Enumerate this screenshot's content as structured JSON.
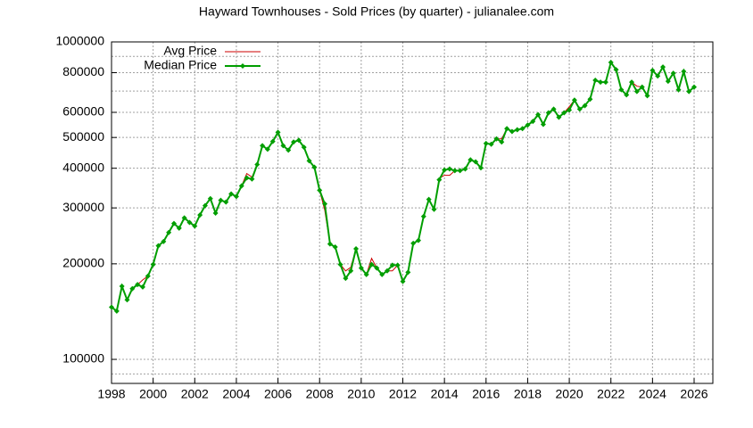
{
  "chart_data": {
    "type": "line",
    "title": "Hayward Townhouses - Sold Prices (by quarter) - julianalee.com",
    "x": [
      1998,
      1998.25,
      1998.5,
      1998.75,
      1999,
      1999.25,
      1999.5,
      1999.75,
      2000,
      2000.25,
      2000.5,
      2000.75,
      2001,
      2001.25,
      2001.5,
      2001.75,
      2002,
      2002.25,
      2002.5,
      2002.75,
      2003,
      2003.25,
      2003.5,
      2003.75,
      2004,
      2004.25,
      2004.5,
      2004.75,
      2005,
      2005.25,
      2005.5,
      2005.75,
      2006,
      2006.25,
      2006.5,
      2006.75,
      2007,
      2007.25,
      2007.5,
      2007.75,
      2008,
      2008.25,
      2008.5,
      2008.75,
      2009,
      2009.25,
      2009.5,
      2009.75,
      2010,
      2010.25,
      2010.5,
      2010.75,
      2011,
      2011.25,
      2011.5,
      2011.75,
      2012,
      2012.25,
      2012.5,
      2012.75,
      2013,
      2013.25,
      2013.5,
      2013.75,
      2014,
      2014.25,
      2014.5,
      2014.75,
      2015,
      2015.25,
      2015.5,
      2015.75,
      2016,
      2016.25,
      2016.5,
      2016.75,
      2017,
      2017.25,
      2017.5,
      2017.75,
      2018,
      2018.25,
      2018.5,
      2018.75,
      2019,
      2019.25,
      2019.5,
      2019.75,
      2020,
      2020.25,
      2020.5,
      2020.75,
      2021,
      2021.25,
      2021.5,
      2021.75,
      2022,
      2022.25,
      2022.5,
      2022.75,
      2023,
      2023.25,
      2023.5,
      2023.75,
      2024,
      2024.25,
      2024.5,
      2024.75,
      2025,
      2025.25,
      2025.5,
      2025.75,
      2026
    ],
    "series": [
      {
        "name": "Avg Price",
        "color": "#cc0000",
        "marker": false,
        "values": [
          146000,
          142000,
          170000,
          154000,
          167000,
          172000,
          178000,
          183000,
          199000,
          228000,
          235000,
          251000,
          268000,
          259000,
          279000,
          270000,
          263000,
          285000,
          305000,
          321000,
          289000,
          317000,
          313000,
          332000,
          326000,
          352000,
          385000,
          375000,
          411000,
          471000,
          459000,
          486000,
          519000,
          471000,
          456000,
          484000,
          490000,
          466000,
          422000,
          403000,
          341000,
          295000,
          231000,
          226000,
          199000,
          190000,
          195000,
          223000,
          194000,
          185000,
          208000,
          194000,
          185000,
          190000,
          190000,
          198000,
          176000,
          188000,
          232000,
          237000,
          282000,
          319000,
          297000,
          372000,
          380000,
          380000,
          393000,
          393000,
          398000,
          425000,
          419000,
          401000,
          479000,
          476000,
          495000,
          495000,
          533000,
          522000,
          529000,
          533000,
          547000,
          562000,
          590000,
          550000,
          598000,
          614000,
          579000,
          598000,
          625000,
          656000,
          614000,
          630000,
          660000,
          757000,
          747000,
          747000,
          862000,
          818000,
          707000,
          681000,
          747000,
          725000,
          721000,
          677000,
          813000,
          781000,
          834000,
          752000,
          797000,
          707000,
          807000,
          698000,
          721000
        ]
      },
      {
        "name": "Median Price",
        "color": "#009e00",
        "marker": true,
        "values": [
          146000,
          142000,
          170000,
          154000,
          167000,
          172000,
          169000,
          183000,
          199000,
          228000,
          235000,
          251000,
          268000,
          259000,
          279000,
          270000,
          263000,
          285000,
          305000,
          321000,
          289000,
          317000,
          313000,
          332000,
          326000,
          352000,
          373000,
          370000,
          411000,
          471000,
          459000,
          486000,
          519000,
          471000,
          456000,
          484000,
          490000,
          466000,
          422000,
          403000,
          341000,
          309000,
          231000,
          226000,
          199000,
          180000,
          190000,
          223000,
          194000,
          185000,
          199000,
          194000,
          185000,
          190000,
          198000,
          198000,
          176000,
          188000,
          232000,
          237000,
          282000,
          319000,
          297000,
          368000,
          395000,
          398000,
          393000,
          393000,
          398000,
          425000,
          419000,
          401000,
          479000,
          476000,
          495000,
          484000,
          533000,
          522000,
          529000,
          533000,
          547000,
          562000,
          590000,
          550000,
          598000,
          614000,
          579000,
          598000,
          610000,
          656000,
          614000,
          630000,
          660000,
          757000,
          747000,
          747000,
          862000,
          818000,
          707000,
          681000,
          747000,
          698000,
          721000,
          677000,
          813000,
          781000,
          834000,
          752000,
          797000,
          707000,
          807000,
          698000,
          721000
        ]
      }
    ],
    "xlim": [
      1998,
      2026.9
    ],
    "xticks": [
      1998,
      2000,
      2002,
      2004,
      2006,
      2008,
      2010,
      2012,
      2014,
      2016,
      2018,
      2020,
      2022,
      2024,
      2026
    ],
    "ylim": [
      84000,
      1000000
    ],
    "yticks": [
      100000,
      200000,
      300000,
      400000,
      500000,
      600000,
      800000,
      1000000
    ],
    "minor_yticks": [
      90000,
      700000,
      900000
    ],
    "log_y": true,
    "grid": true,
    "legend": "top-left"
  }
}
